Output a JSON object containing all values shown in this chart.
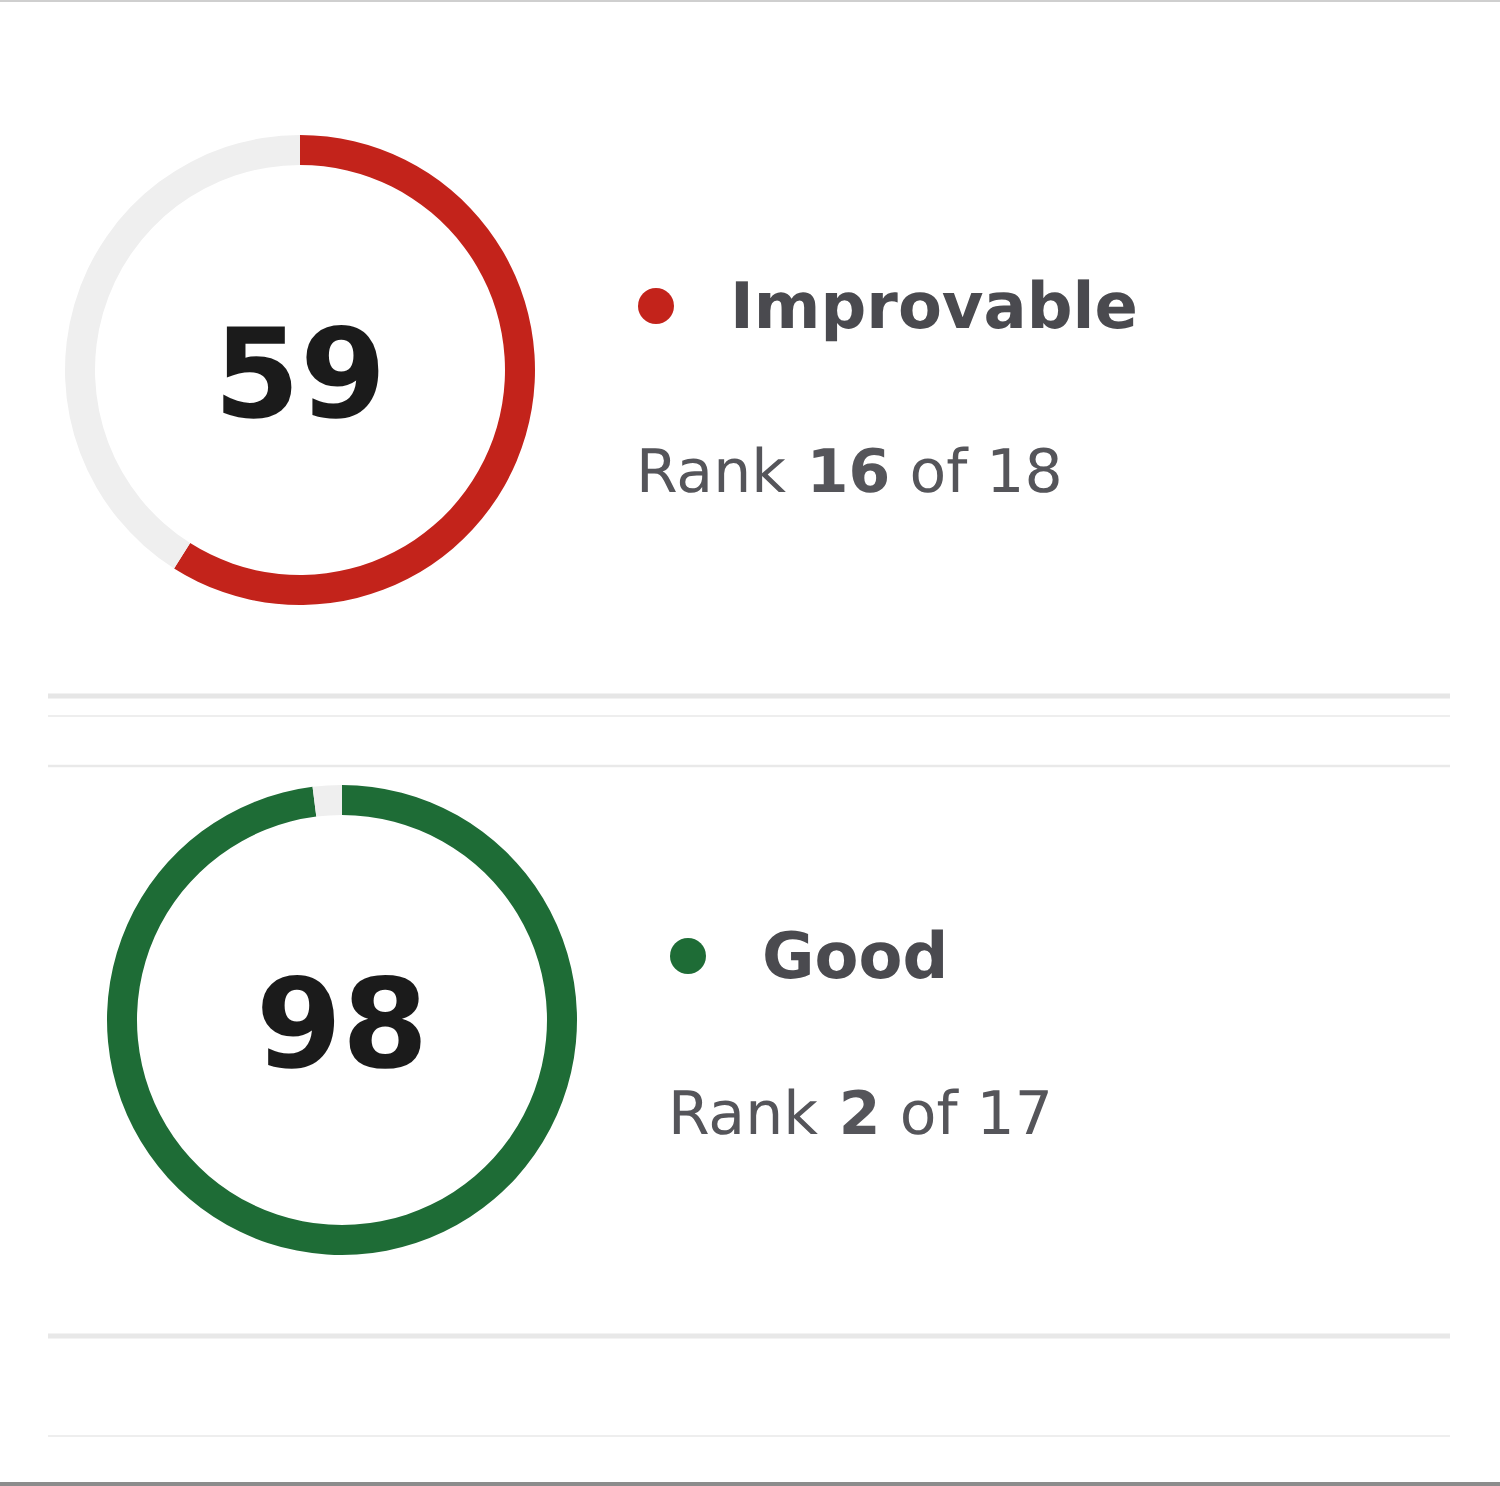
{
  "chart_data": [
    {
      "type": "donut",
      "categories": [
        "Improvable",
        null
      ],
      "values": [
        59,
        41
      ],
      "colors": [
        "#c3231b",
        "#efefef"
      ],
      "value_labels": [
        "59",
        null
      ],
      "legend": "right",
      "annotations": [
        "Rank 16 of 18"
      ]
    },
    {
      "type": "donut",
      "categories": [
        "Good",
        null
      ],
      "values": [
        98,
        2
      ],
      "colors": [
        "#1e6c36",
        "#efefef"
      ],
      "value_labels": [
        "98",
        null
      ],
      "legend": "right",
      "annotations": [
        "Rank 2 of 17"
      ]
    }
  ]
}
